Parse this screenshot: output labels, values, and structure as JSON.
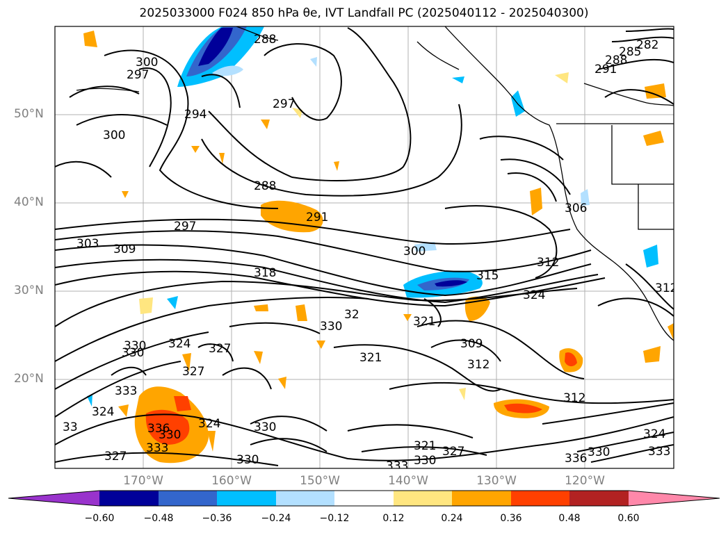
{
  "title": "2025033000 F024 850 hPa θe, IVT Landfall PC (2025040112 - 2025040300)",
  "lat_labels": [
    "50°N",
    "40°N",
    "30°N",
    "20°N"
  ],
  "lon_labels": [
    "170°W",
    "160°W",
    "150°W",
    "140°W",
    "130°W",
    "120°W"
  ],
  "contour_labels": [
    "297",
    "300",
    "288",
    "294",
    "297",
    "300",
    "288",
    "291",
    "297",
    "303",
    "309",
    "318",
    "300",
    "315",
    "312",
    "324",
    "306",
    "321",
    "32",
    "330",
    "321",
    "309",
    "312",
    "327",
    "324",
    "330",
    "333",
    "312",
    "324",
    "330",
    "330",
    "336",
    "324",
    "327",
    "330",
    "321",
    "330",
    "327",
    "333",
    "336",
    "330",
    "333",
    "324",
    "285",
    "282",
    "288",
    "291",
    "312",
    "33",
    "333",
    "327",
    "330"
  ],
  "colorbar": {
    "colors": [
      "#9933cc",
      "#000099",
      "#3366cc",
      "#00bfff",
      "#b3e0ff",
      "#ffffff",
      "#ffe680",
      "#ffa500",
      "#ff4000",
      "#b22222",
      "#ff88aa"
    ],
    "ticks": [
      "−0.60",
      "−0.48",
      "−0.36",
      "−0.24",
      "−0.12",
      "0.12",
      "0.24",
      "0.36",
      "0.48",
      "0.60"
    ]
  }
}
